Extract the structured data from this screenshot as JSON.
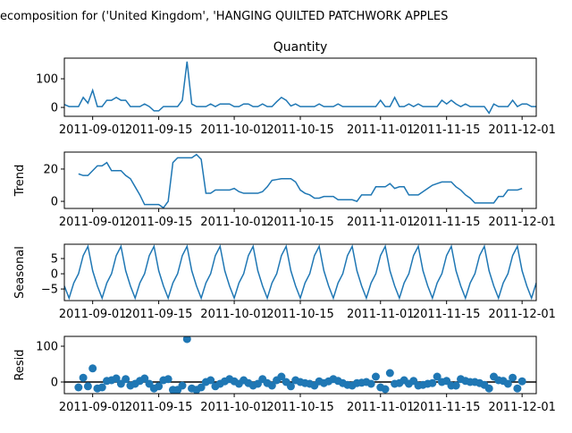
{
  "title": "ecomposition for ('United Kingdom', 'HANGING QUILTED PATCHWORK APPLES",
  "x": [
    "2011-08-26",
    "2011-08-27",
    "2011-08-28",
    "2011-08-29",
    "2011-08-30",
    "2011-08-31",
    "2011-09-01",
    "2011-09-02",
    "2011-09-03",
    "2011-09-04",
    "2011-09-05",
    "2011-09-06",
    "2011-09-07",
    "2011-09-08",
    "2011-09-09",
    "2011-09-10",
    "2011-09-11",
    "2011-09-12",
    "2011-09-13",
    "2011-09-14",
    "2011-09-15",
    "2011-09-16",
    "2011-09-17",
    "2011-09-18",
    "2011-09-19",
    "2011-09-20",
    "2011-09-21",
    "2011-09-22",
    "2011-09-23",
    "2011-09-24",
    "2011-09-25",
    "2011-09-26",
    "2011-09-27",
    "2011-09-28",
    "2011-09-29",
    "2011-09-30",
    "2011-10-01",
    "2011-10-02",
    "2011-10-03",
    "2011-10-04",
    "2011-10-05",
    "2011-10-06",
    "2011-10-07",
    "2011-10-08",
    "2011-10-09",
    "2011-10-10",
    "2011-10-11",
    "2011-10-12",
    "2011-10-13",
    "2011-10-14",
    "2011-10-15",
    "2011-10-16",
    "2011-10-17",
    "2011-10-18",
    "2011-10-19",
    "2011-10-20",
    "2011-10-21",
    "2011-10-22",
    "2011-10-23",
    "2011-10-24",
    "2011-10-25",
    "2011-10-26",
    "2011-10-27",
    "2011-10-28",
    "2011-10-29",
    "2011-10-30",
    "2011-10-31",
    "2011-11-01",
    "2011-11-02",
    "2011-11-03",
    "2011-11-04",
    "2011-11-05",
    "2011-11-06",
    "2011-11-07",
    "2011-11-08",
    "2011-11-09",
    "2011-11-10",
    "2011-11-11",
    "2011-11-12",
    "2011-11-13",
    "2011-11-14",
    "2011-11-15",
    "2011-11-16",
    "2011-11-17",
    "2011-11-18",
    "2011-11-19",
    "2011-11-20",
    "2011-11-21",
    "2011-11-22",
    "2011-11-23",
    "2011-11-24",
    "2011-11-25",
    "2011-11-26",
    "2011-11-27",
    "2011-11-28",
    "2011-11-29",
    "2011-11-30",
    "2011-12-01",
    "2011-12-02",
    "2011-12-03",
    "2011-12-04"
  ],
  "xlim": [
    "2011-08-26",
    "2011-12-04"
  ],
  "xticks": [
    "2011-09-01",
    "2011-09-15",
    "2011-10-01",
    "2011-10-15",
    "2011-11-01",
    "2011-11-15",
    "2011-12-01"
  ],
  "chart_data": [
    {
      "type": "line",
      "title": "Quantity",
      "color": "#1f77b4",
      "ylim": [
        -31,
        172
      ],
      "yticks": [
        0,
        100
      ],
      "values": [
        10,
        3,
        3,
        3,
        35,
        15,
        60,
        3,
        3,
        25,
        25,
        35,
        25,
        25,
        3,
        3,
        3,
        12,
        3,
        -12,
        -12,
        3,
        3,
        3,
        3,
        25,
        160,
        12,
        3,
        3,
        3,
        12,
        3,
        12,
        12,
        12,
        3,
        3,
        12,
        12,
        3,
        3,
        12,
        3,
        3,
        20,
        35,
        25,
        5,
        12,
        3,
        3,
        3,
        3,
        12,
        3,
        3,
        3,
        12,
        3,
        3,
        3,
        3,
        3,
        3,
        3,
        3,
        25,
        3,
        3,
        35,
        3,
        3,
        12,
        3,
        12,
        3,
        3,
        3,
        3,
        25,
        12,
        25,
        12,
        3,
        12,
        3,
        3,
        3,
        3,
        -20,
        12,
        3,
        3,
        3,
        25,
        3,
        12,
        12,
        3,
        3
      ]
    },
    {
      "type": "line",
      "ylabel": "Trend",
      "color": "#1f77b4",
      "ylim": [
        -4.4,
        30.5
      ],
      "yticks": [
        0,
        20
      ],
      "values": [
        null,
        null,
        null,
        17,
        16,
        16,
        19,
        22,
        22,
        24,
        19,
        19,
        19,
        16,
        14,
        9,
        4,
        -2,
        -2,
        -2,
        -2,
        -4,
        0,
        24,
        27,
        27,
        27,
        27,
        29,
        26,
        5,
        5,
        7,
        7,
        7,
        7,
        8,
        6,
        5,
        5,
        5,
        5,
        6,
        9,
        13,
        13.5,
        14,
        14,
        14,
        12,
        7,
        5,
        4,
        2,
        2,
        3,
        3,
        3,
        1,
        1,
        1,
        1,
        0,
        4,
        4,
        4,
        9,
        9,
        9,
        11,
        8,
        9,
        9,
        4,
        4,
        4,
        6,
        8,
        10,
        11,
        12,
        12,
        12,
        9,
        7,
        4,
        2,
        -1,
        -1,
        -1,
        -1,
        -1,
        3,
        3,
        7,
        7,
        7,
        8,
        null,
        null,
        null
      ]
    },
    {
      "type": "line",
      "ylabel": "Seasonal",
      "color": "#1f77b4",
      "ylim": [
        -8.8,
        9.7
      ],
      "yticks": [
        5,
        0,
        {
          "value": -5,
          "label": "−5"
        }
      ],
      "values": [
        -4,
        -8,
        -3,
        0,
        6,
        9,
        1,
        -4,
        -8,
        -3,
        0,
        6,
        9,
        1,
        -4,
        -8,
        -3,
        0,
        6,
        9,
        1,
        -4,
        -8,
        -3,
        0,
        6,
        9,
        1,
        -4,
        -8,
        -3,
        0,
        6,
        9,
        1,
        -4,
        -8,
        -3,
        0,
        6,
        9,
        1,
        -4,
        -8,
        -3,
        0,
        6,
        9,
        1,
        -4,
        -8,
        -3,
        0,
        6,
        9,
        1,
        -4,
        -8,
        -3,
        0,
        6,
        9,
        1,
        -4,
        -8,
        -3,
        0,
        6,
        9,
        1,
        -4,
        -8,
        -3,
        0,
        6,
        9,
        1,
        -4,
        -8,
        -3,
        0,
        6,
        9,
        1,
        -4,
        -8,
        -3,
        0,
        6,
        9,
        1,
        -4,
        -8,
        -3,
        0,
        6,
        9,
        1,
        -4,
        -8,
        -3
      ]
    },
    {
      "type": "scatter",
      "ylabel": "Resid",
      "color": "#1f77b4",
      "ylim": [
        -32.5,
        127.5
      ],
      "yticks": [
        0,
        100
      ],
      "values": [
        null,
        null,
        null,
        -15,
        12,
        -12,
        38,
        -18,
        -15,
        3,
        5,
        10,
        -5,
        8,
        -10,
        -5,
        3,
        10,
        -5,
        -18,
        -12,
        5,
        8,
        -22,
        -22,
        -10,
        120,
        -18,
        -22,
        -15,
        0,
        5,
        -12,
        -5,
        2,
        8,
        2,
        -5,
        5,
        -3,
        -10,
        -5,
        8,
        -3,
        -10,
        5,
        15,
        0,
        -12,
        5,
        0,
        -3,
        -5,
        -10,
        2,
        -3,
        2,
        8,
        3,
        -3,
        -8,
        -10,
        -3,
        -2,
        0,
        -5,
        15,
        -15,
        -20,
        25,
        -5,
        -3,
        5,
        -5,
        3,
        -10,
        -8,
        -5,
        -3,
        15,
        0,
        3,
        -10,
        -10,
        8,
        3,
        0,
        0,
        -3,
        -8,
        -18,
        15,
        5,
        3,
        -5,
        12,
        -18,
        2,
        null,
        null,
        null
      ]
    }
  ]
}
